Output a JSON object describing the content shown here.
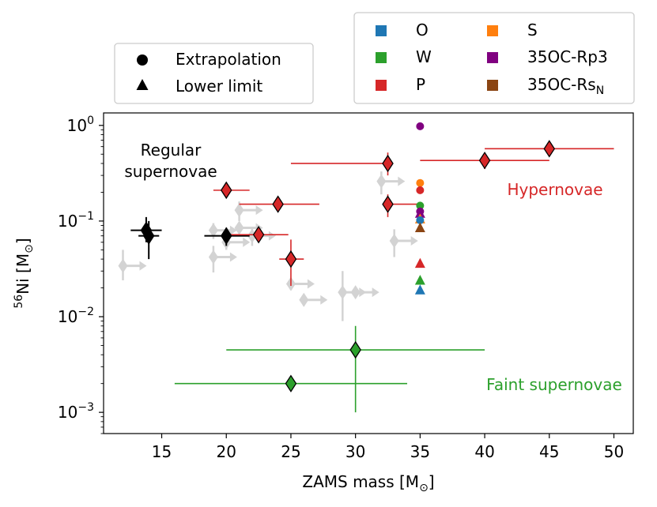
{
  "chart_data": {
    "type": "scatter",
    "xlabel": "ZAMS mass [M",
    "xlabel_sub": "⊙",
    "xlabel_end": "]",
    "ylabel_sup": "56",
    "ylabel": "Ni [M",
    "ylabel_sub": "⊙",
    "ylabel_end": "]",
    "xlim": [
      10.5,
      51.5
    ],
    "ylim": [
      0.0006,
      1.35
    ],
    "yscale": "log",
    "x_ticks": [
      15,
      20,
      25,
      30,
      35,
      40,
      45,
      50
    ],
    "y_ticks": [
      {
        "value": 0.001,
        "base": "10",
        "exp": "−3"
      },
      {
        "value": 0.01,
        "base": "10",
        "exp": "−2"
      },
      {
        "value": 0.1,
        "base": "10",
        "exp": "−1"
      },
      {
        "value": 1,
        "base": "10",
        "exp": "0"
      }
    ],
    "colors": {
      "O": "#1f77b4",
      "W": "#2ca02c",
      "P": "#d62728",
      "S": "#ff7f0e",
      "Rp3": "#800080",
      "RsN": "#8b4513",
      "grey": "#d3d3d3",
      "black": "#000000"
    },
    "annotations": [
      {
        "lines": [
          "Regular",
          "supernovae"
        ],
        "color": "#000000"
      },
      {
        "lines": [
          "Hypernovae"
        ],
        "color": "#d62728"
      },
      {
        "lines": [
          "Faint supernovae"
        ],
        "color": "#2ca02c"
      }
    ],
    "legend_marker": {
      "placement": "top-left",
      "entries": [
        {
          "label": "Extrapolation",
          "marker": "circle"
        },
        {
          "label": "Lower limit",
          "marker": "triangle"
        }
      ]
    },
    "legend_model": {
      "placement": "top-right",
      "entries": [
        {
          "label": "O",
          "sub": "",
          "color": "#1f77b4"
        },
        {
          "label": "W",
          "sub": "",
          "color": "#2ca02c"
        },
        {
          "label": "P",
          "sub": "",
          "color": "#d62728"
        },
        {
          "label": "S",
          "sub": "",
          "color": "#ff7f0e"
        },
        {
          "label": "35OC-Rp3",
          "sub": "",
          "color": "#800080"
        },
        {
          "label": "35OC-Rs",
          "sub": "N",
          "color": "#8b4513"
        }
      ]
    },
    "series": [
      {
        "group": "regular_black",
        "color": "#000000",
        "points": [
          {
            "x": 13.8,
            "y": 0.08,
            "xerr": [
              1.2,
              1.2
            ],
            "yerr": [
              0.02,
              0.03
            ]
          },
          {
            "x": 14.0,
            "y": 0.07,
            "xerr": [
              0.8,
              0.8
            ],
            "yerr": [
              0.03,
              0.03
            ]
          },
          {
            "x": 20.0,
            "y": 0.07,
            "xerr": [
              1.7,
              1.8
            ],
            "yerr": [
              0.015,
              0.015
            ]
          }
        ]
      },
      {
        "group": "hypernovae",
        "color": "#d62728",
        "points": [
          {
            "x": 20.0,
            "y": 0.21,
            "xerr": [
              1.0,
              1.8
            ],
            "yerr": [
              0.02,
              0.02
            ]
          },
          {
            "x": 22.5,
            "y": 0.072,
            "xerr": [
              2.3,
              2.3
            ],
            "yerr": [
              0.007,
              0.007
            ]
          },
          {
            "x": 24.0,
            "y": 0.15,
            "xerr": [
              3.0,
              3.2
            ],
            "yerr": [
              0.01,
              0.01
            ]
          },
          {
            "x": 25.0,
            "y": 0.04,
            "xerr": [
              0.9,
              1.0
            ],
            "yerr": [
              0.019,
              0.024
            ]
          },
          {
            "x": 32.5,
            "y": 0.15,
            "xerr": [
              0.0,
              2.4
            ],
            "yerr": [
              0.04,
              0.04
            ]
          },
          {
            "x": 32.5,
            "y": 0.4,
            "xerr": [
              7.5,
              0.0
            ],
            "yerr": [
              0.1,
              0.12
            ]
          },
          {
            "x": 40.0,
            "y": 0.43,
            "xerr": [
              5.0,
              5.0
            ],
            "yerr": [
              0.08,
              0.08
            ]
          },
          {
            "x": 45.0,
            "y": 0.57,
            "xerr": [
              5.0,
              5.0
            ],
            "yerr": [
              0.07,
              0.07
            ]
          }
        ]
      },
      {
        "group": "faint",
        "color": "#2ca02c",
        "points": [
          {
            "x": 30.0,
            "y": 0.0045,
            "xerr": [
              10.0,
              10.0
            ],
            "yerr": [
              0.0035,
              0.0035
            ]
          },
          {
            "x": 25.0,
            "y": 0.002,
            "xerr": [
              9.0,
              9.0
            ],
            "yerr": [
              0.0,
              0.0
            ]
          }
        ]
      },
      {
        "group": "lower_limits_grey",
        "color": "#d3d3d3",
        "points": [
          {
            "x": 12.0,
            "y": 0.034,
            "yerr": [
              0.01,
              0.016
            ]
          },
          {
            "x": 19.0,
            "y": 0.08,
            "yerr": [
              0.015,
              0.015
            ]
          },
          {
            "x": 19.0,
            "y": 0.042,
            "yerr": [
              0.013,
              0.013
            ]
          },
          {
            "x": 20.0,
            "y": 0.06,
            "yerr": [
              0.01,
              0.01
            ]
          },
          {
            "x": 21.0,
            "y": 0.13,
            "yerr": [
              0.03,
              0.03
            ]
          },
          {
            "x": 21.0,
            "y": 0.085,
            "yerr": [
              0.01,
              0.01
            ]
          },
          {
            "x": 22.0,
            "y": 0.07,
            "yerr": [
              0.015,
              0.015
            ]
          },
          {
            "x": 25.0,
            "y": 0.022,
            "yerr": [
              0.003,
              0.003
            ]
          },
          {
            "x": 26.0,
            "y": 0.015,
            "yerr": [
              0.002,
              0.002
            ]
          },
          {
            "x": 29.0,
            "y": 0.018,
            "yerr": [
              0.009,
              0.012
            ]
          },
          {
            "x": 30.0,
            "y": 0.018,
            "yerr": [
              0.0,
              0.0
            ]
          },
          {
            "x": 32.0,
            "y": 0.26,
            "yerr": [
              0.07,
              0.07
            ]
          },
          {
            "x": 33.0,
            "y": 0.062,
            "yerr": [
              0.02,
              0.02
            ]
          }
        ]
      },
      {
        "group": "models",
        "points": [
          {
            "model": "Rp3",
            "marker": "circle",
            "x": 35,
            "y": 0.98
          },
          {
            "model": "S",
            "marker": "circle",
            "x": 35,
            "y": 0.25
          },
          {
            "model": "P",
            "marker": "circle",
            "x": 35,
            "y": 0.21
          },
          {
            "model": "W",
            "marker": "circle",
            "x": 35,
            "y": 0.145
          },
          {
            "model": "Rp3",
            "marker": "circle",
            "x": 35,
            "y": 0.126
          },
          {
            "model": "Rp3",
            "marker": "triangle",
            "x": 35,
            "y": 0.12
          },
          {
            "model": "S",
            "marker": "triangle",
            "x": 35,
            "y": 0.105
          },
          {
            "model": "O",
            "marker": "circle",
            "x": 35,
            "y": 0.102
          },
          {
            "model": "RsN",
            "marker": "triangle",
            "x": 35,
            "y": 0.085
          },
          {
            "model": "P",
            "marker": "triangle",
            "x": 35,
            "y": 0.036
          },
          {
            "model": "W",
            "marker": "triangle",
            "x": 35,
            "y": 0.024
          },
          {
            "model": "O",
            "marker": "triangle",
            "x": 35,
            "y": 0.019
          }
        ]
      }
    ]
  }
}
